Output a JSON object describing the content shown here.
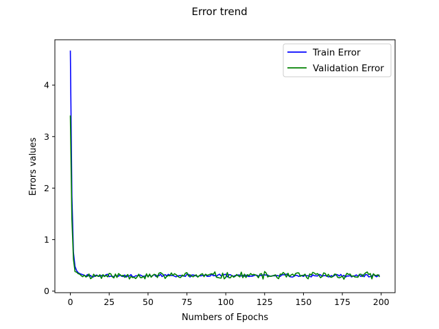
{
  "chart_data": {
    "type": "line",
    "title": "Error trend",
    "xlabel": "Numbers of Epochs",
    "ylabel": "Errors values",
    "xlim": [
      -9.95,
      208.95
    ],
    "ylim": [
      -0.03,
      4.88
    ],
    "xticks": [
      0,
      25,
      50,
      75,
      100,
      125,
      150,
      175,
      200
    ],
    "yticks": [
      0,
      1,
      2,
      3,
      4
    ],
    "grid": false,
    "legend_position": "upper right",
    "series": [
      {
        "name": "Train Error",
        "color": "#0000ff",
        "head": [
          4.67,
          1.85,
          0.75,
          0.48,
          0.4,
          0.36,
          0.34,
          0.33,
          0.32,
          0.31
        ],
        "tail_base": 0.3,
        "tail_amp": 0.025,
        "tail_seed": 3,
        "n": 200
      },
      {
        "name": "Validation Error",
        "color": "#008000",
        "head": [
          3.41,
          1.4,
          0.62,
          0.38,
          0.37,
          0.34,
          0.33,
          0.3,
          0.28,
          0.31
        ],
        "tail_base": 0.3,
        "tail_amp": 0.06,
        "tail_seed": 11,
        "n": 200
      }
    ]
  }
}
